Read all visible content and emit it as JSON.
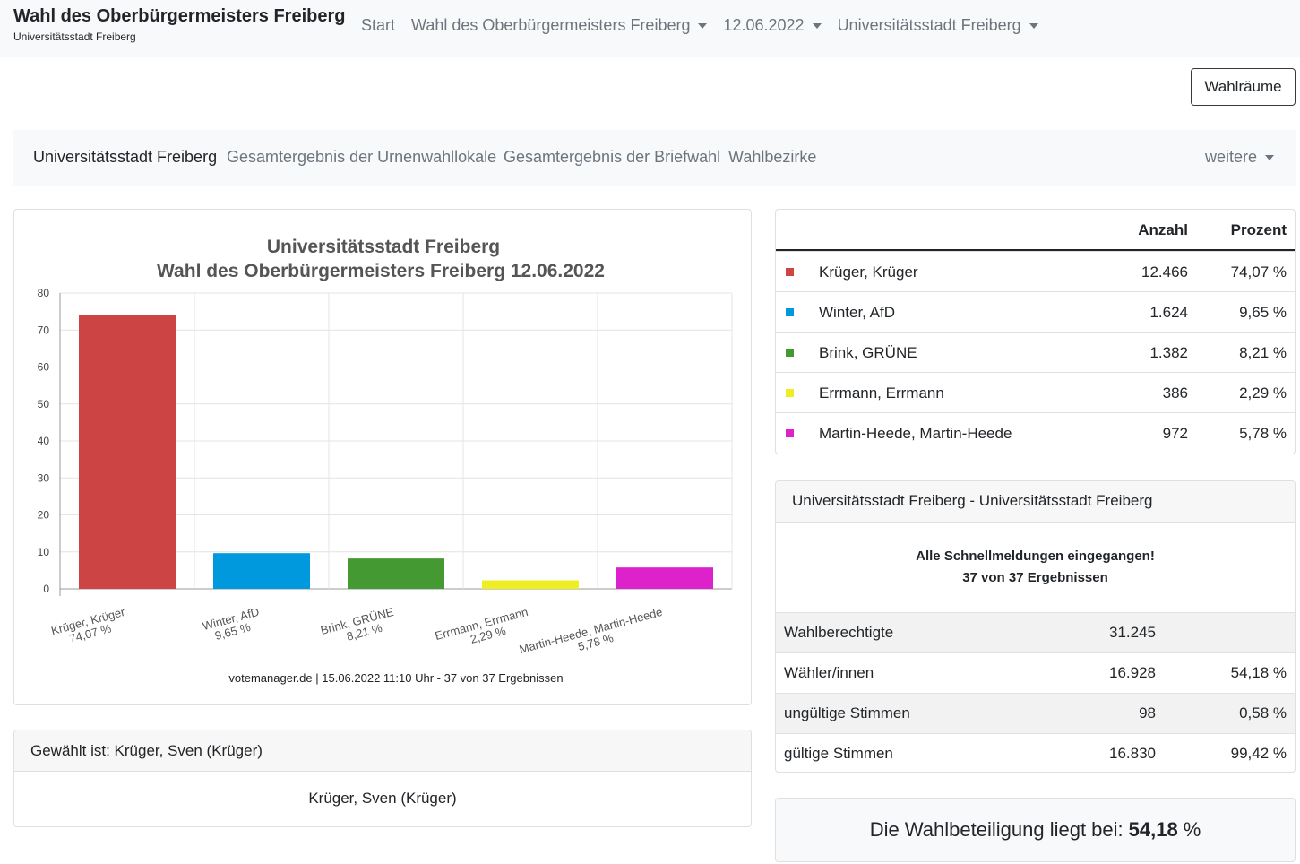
{
  "header": {
    "title": "Wahl des Oberbürgermeisters Freiberg",
    "subtitle": "Universitätsstadt Freiberg",
    "nav": [
      {
        "label": "Start",
        "dropdown": false
      },
      {
        "label": "Wahl des Oberbürgermeisters Freiberg",
        "dropdown": true
      },
      {
        "label": "12.06.2022",
        "dropdown": true
      },
      {
        "label": "Universitätsstadt Freiberg",
        "dropdown": true
      }
    ]
  },
  "wahlraeume_button": "Wahlräume",
  "subnav": {
    "items": [
      "Universitätsstadt Freiberg",
      "Gesamtergebnis der Urnenwahllokale",
      "Gesamtergebnis der Briefwahl",
      "Wahlbezirke"
    ],
    "more": "weitere"
  },
  "chart_data": {
    "type": "bar",
    "title": "Universitätsstadt Freiberg",
    "subtitle": "Wahl des Oberbürgermeisters Freiberg 12.06.2022",
    "categories": [
      "Krüger, Krüger",
      "Winter, AfD",
      "Brink, GRÜNE",
      "Errmann, Errmann",
      "Martin-Heede, Martin-Heede"
    ],
    "value_labels": [
      "74,07 %",
      "9,65 %",
      "8,21 %",
      "2,29 %",
      "5,78 %"
    ],
    "values": [
      74.07,
      9.65,
      8.21,
      2.29,
      5.78
    ],
    "colors": [
      "#cc4444",
      "#0099dd",
      "#449933",
      "#eeee22",
      "#dd22cc"
    ],
    "ylim": [
      0,
      80
    ],
    "yticks": [
      0,
      10,
      20,
      30,
      40,
      50,
      60,
      70,
      80
    ],
    "grid": true,
    "footer": "votemanager.de | 15.06.2022 11:10 Uhr - 37 von 37 Ergebnissen"
  },
  "elected": {
    "header": "Gewählt ist: Krüger, Sven (Krüger)",
    "name": "Krüger, Sven (Krüger)"
  },
  "results": {
    "col_count": "Anzahl",
    "col_percent": "Prozent",
    "rows": [
      {
        "name": "Krüger, Krüger",
        "count": "12.466",
        "percent": "74,07 %",
        "color": "#cc4444"
      },
      {
        "name": "Winter, AfD",
        "count": "1.624",
        "percent": "9,65 %",
        "color": "#0099dd"
      },
      {
        "name": "Brink, GRÜNE",
        "count": "1.382",
        "percent": "8,21 %",
        "color": "#449933"
      },
      {
        "name": "Errmann, Errmann",
        "count": "386",
        "percent": "2,29 %",
        "color": "#eeee22"
      },
      {
        "name": "Martin-Heede, Martin-Heede",
        "count": "972",
        "percent": "5,78 %",
        "color": "#dd22cc"
      }
    ]
  },
  "stats": {
    "header": "Universitätsstadt Freiberg - Universitätsstadt Freiberg",
    "message1": "Alle Schnellmeldungen eingegangen!",
    "message2": "37 von 37 Ergebnissen",
    "rows": [
      {
        "label": "Wahlberechtigte",
        "value": "31.245",
        "percent": ""
      },
      {
        "label": "Wähler/innen",
        "value": "16.928",
        "percent": "54,18 %"
      },
      {
        "label": "ungültige Stimmen",
        "value": "98",
        "percent": "0,58 %"
      },
      {
        "label": "gültige Stimmen",
        "value": "16.830",
        "percent": "99,42 %"
      }
    ]
  },
  "turnout": {
    "prefix": "Die Wahlbeteiligung liegt bei:",
    "value": "54,18",
    "suffix": "%"
  }
}
